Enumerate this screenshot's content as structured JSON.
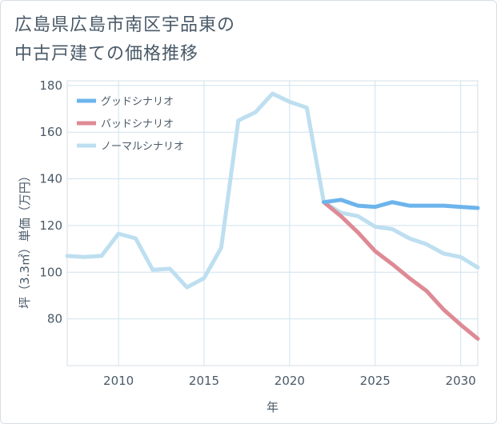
{
  "title_lines": [
    "広島県広島市南区宇品東の",
    "中古戸建ての価格推移"
  ],
  "chart_data": {
    "type": "line",
    "title": "広島県広島市南区宇品東の中古戸建ての価格推移",
    "xlabel": "年",
    "ylabel": "坪（3.3㎡）単価（万円）",
    "xlim": [
      2007,
      2031
    ],
    "ylim": [
      60,
      182
    ],
    "xticks": [
      2010,
      2015,
      2020,
      2025,
      2030
    ],
    "yticks": [
      80,
      100,
      120,
      140,
      160,
      180
    ],
    "legend_position": "top-left",
    "series": [
      {
        "name": "グッドシナリオ",
        "color": "#6cb4ec",
        "x": [
          2022,
          2023,
          2024,
          2025,
          2026,
          2027,
          2028,
          2029,
          2030,
          2031
        ],
        "values": [
          130,
          131,
          128.5,
          128,
          130,
          128.5,
          128.5,
          128.5,
          128,
          127.5
        ]
      },
      {
        "name": "バッドシナリオ",
        "color": "#de8a95",
        "x": [
          2022,
          2023,
          2024,
          2025,
          2026,
          2027,
          2028,
          2029,
          2030,
          2031
        ],
        "values": [
          130,
          124,
          117,
          109,
          103.5,
          97.5,
          92,
          84,
          77.5,
          71.5
        ]
      },
      {
        "name": "ノーマルシナリオ",
        "color": "#bddff0",
        "x": [
          2007,
          2008,
          2009,
          2010,
          2011,
          2012,
          2013,
          2014,
          2015,
          2016,
          2017,
          2018,
          2019,
          2020,
          2021,
          2022,
          2023,
          2024,
          2025,
          2026,
          2027,
          2028,
          2029,
          2030,
          2031
        ],
        "values": [
          107,
          106.5,
          107,
          116.5,
          114.5,
          101,
          101.5,
          93.5,
          97.5,
          110.5,
          165,
          168.5,
          176.5,
          173,
          170.5,
          130,
          125.5,
          124,
          119.5,
          118.5,
          114.5,
          112,
          108,
          106.5,
          102
        ]
      }
    ]
  }
}
